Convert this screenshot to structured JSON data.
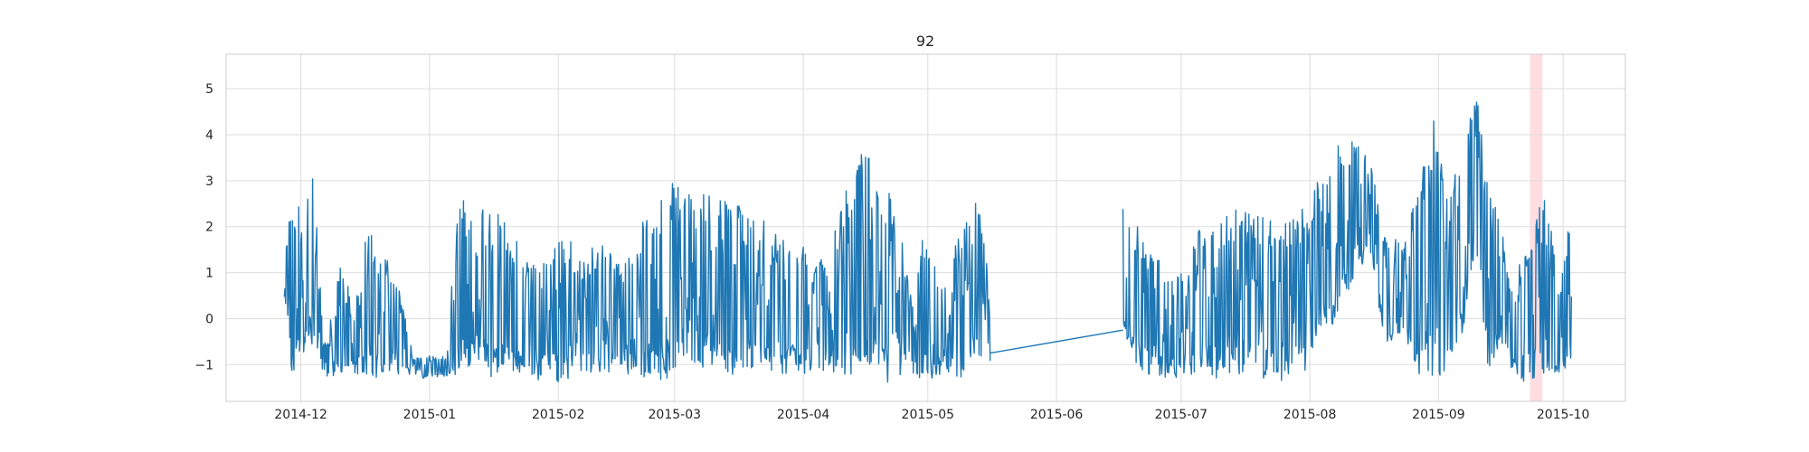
{
  "chart_data": {
    "type": "line",
    "title": "92",
    "xlabel": "",
    "ylabel": "",
    "grid": true,
    "xlim": [
      "2014-11-13",
      "2015-10-16"
    ],
    "ylim": [
      -1.8,
      5.75
    ],
    "x_ticks": [
      "2014-12",
      "2015-01",
      "2015-02",
      "2015-03",
      "2015-04",
      "2015-05",
      "2015-06",
      "2015-07",
      "2015-08",
      "2015-09",
      "2015-10"
    ],
    "y_ticks": [
      -1,
      0,
      1,
      2,
      3,
      4,
      5
    ],
    "y_tick_labels": [
      "−1",
      "0",
      "1",
      "2",
      "3",
      "4",
      "5"
    ],
    "highlight": {
      "start": "2015-09-23",
      "end": "2015-09-26",
      "color": "#ffdde0"
    },
    "series": [
      {
        "color": "#1f77b4",
        "segments": [
          {
            "start": "2014-11-27",
            "end": "2015-05-16",
            "anchors": [
              [
                "2014-11-27",
                0.3,
                1.9
              ],
              [
                "2014-11-29",
                -1.3,
                2.4
              ],
              [
                "2014-12-02",
                -1.0,
                2.6
              ],
              [
                "2014-12-04",
                -0.5,
                3.1
              ],
              [
                "2014-12-07",
                -1.4,
                -0.6
              ],
              [
                "2014-12-10",
                -1.3,
                1.5
              ],
              [
                "2014-12-14",
                -1.2,
                0.2
              ],
              [
                "2014-12-17",
                -1.3,
                2.1
              ],
              [
                "2014-12-20",
                -1.3,
                1.5
              ],
              [
                "2014-12-24",
                -1.2,
                1.0
              ],
              [
                "2014-12-28",
                -1.3,
                -0.8
              ],
              [
                "2015-01-05",
                -1.3,
                -0.8
              ],
              [
                "2015-01-08",
                -1.2,
                2.6
              ],
              [
                "2015-01-12",
                -1.0,
                2.9
              ],
              [
                "2015-01-16",
                -1.3,
                2.3
              ],
              [
                "2015-01-20",
                -1.2,
                2.2
              ],
              [
                "2015-01-25",
                -1.3,
                1.2
              ],
              [
                "2015-02-01",
                -1.4,
                2.0
              ],
              [
                "2015-02-06",
                -1.2,
                1.5
              ],
              [
                "2015-02-12",
                -1.3,
                1.6
              ],
              [
                "2015-02-17",
                -1.2,
                1.2
              ],
              [
                "2015-02-22",
                -1.4,
                2.5
              ],
              [
                "2015-02-28",
                -1.3,
                3.0
              ],
              [
                "2015-03-05",
                -1.3,
                2.7
              ],
              [
                "2015-03-10",
                -1.0,
                2.7
              ],
              [
                "2015-03-16",
                -1.3,
                2.5
              ],
              [
                "2015-03-21",
                -1.0,
                2.2
              ],
              [
                "2015-03-26",
                -1.2,
                2.0
              ],
              [
                "2015-04-01",
                -1.2,
                1.7
              ],
              [
                "2015-04-06",
                -1.2,
                1.4
              ],
              [
                "2015-04-12",
                -1.4,
                3.2
              ],
              [
                "2015-04-16",
                -1.0,
                3.7
              ],
              [
                "2015-04-21",
                -1.4,
                3.1
              ],
              [
                "2015-04-26",
                -1.2,
                1.2
              ],
              [
                "2015-05-01",
                -1.4,
                1.9
              ],
              [
                "2015-05-05",
                -1.2,
                0.9
              ],
              [
                "2015-05-09",
                -1.4,
                2.1
              ],
              [
                "2015-05-13",
                -1.0,
                2.8
              ],
              [
                "2015-05-16",
                -1.0,
                0.6
              ]
            ]
          },
          {
            "start": "2015-05-16",
            "end": "2015-06-17",
            "anchors": [
              [
                "2015-05-16",
                -0.75,
                -0.75
              ],
              [
                "2015-06-17",
                -0.25,
                -0.25
              ]
            ]
          },
          {
            "start": "2015-06-17",
            "end": "2015-10-03",
            "anchors": [
              [
                "2015-06-17",
                -0.2,
                2.6
              ],
              [
                "2015-06-21",
                -1.2,
                2.0
              ],
              [
                "2015-06-25",
                -1.3,
                1.4
              ],
              [
                "2015-06-30",
                -1.3,
                1.0
              ],
              [
                "2015-07-05",
                -1.2,
                1.9
              ],
              [
                "2015-07-10",
                -1.3,
                2.3
              ],
              [
                "2015-07-16",
                -1.3,
                2.5
              ],
              [
                "2015-07-21",
                -1.3,
                2.3
              ],
              [
                "2015-07-26",
                -1.4,
                2.1
              ],
              [
                "2015-07-31",
                -1.2,
                2.5
              ],
              [
                "2015-08-03",
                -0.5,
                3.0
              ],
              [
                "2015-08-06",
                -0.3,
                3.5
              ],
              [
                "2015-08-09",
                0.2,
                4.4
              ],
              [
                "2015-08-12",
                1.0,
                4.0
              ],
              [
                "2015-08-16",
                1.2,
                3.3
              ],
              [
                "2015-08-19",
                -0.6,
                2.3
              ],
              [
                "2015-08-23",
                -0.3,
                1.6
              ],
              [
                "2015-08-27",
                -1.2,
                2.8
              ],
              [
                "2015-08-31",
                -1.3,
                4.4
              ],
              [
                "2015-09-04",
                -1.2,
                3.0
              ],
              [
                "2015-09-07",
                -0.2,
                3.4
              ],
              [
                "2015-09-10",
                1.6,
                5.4
              ],
              [
                "2015-09-13",
                -1.3,
                3.0
              ],
              [
                "2015-09-16",
                -0.5,
                2.2
              ],
              [
                "2015-09-19",
                -1.2,
                0.5
              ],
              [
                "2015-09-21",
                -1.4,
                1.4
              ],
              [
                "2015-09-24",
                -1.3,
                2.5
              ],
              [
                "2015-09-27",
                -1.2,
                2.8
              ],
              [
                "2015-09-30",
                -1.3,
                0.5
              ],
              [
                "2015-10-02",
                -1.0,
                1.9
              ],
              [
                "2015-10-03",
                -0.9,
                2.5
              ]
            ]
          }
        ]
      }
    ]
  }
}
